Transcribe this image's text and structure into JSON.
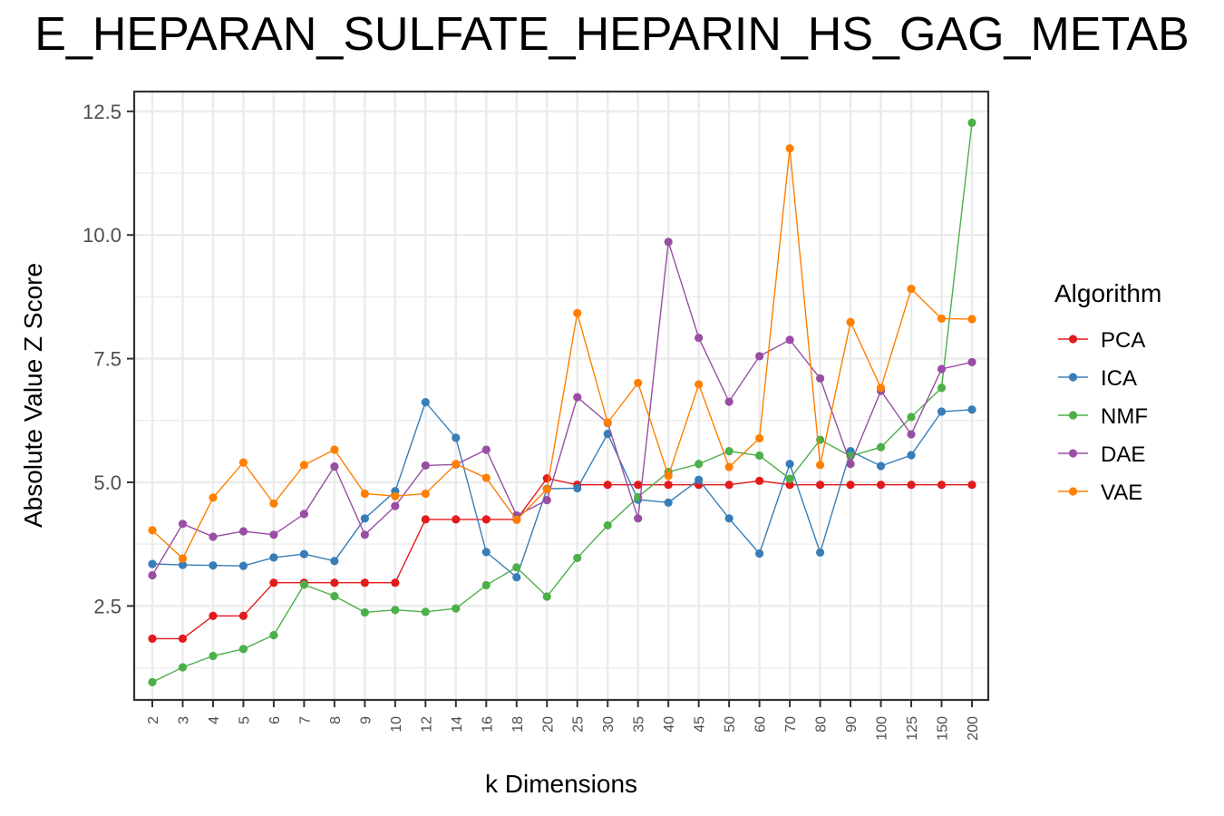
{
  "chart_data": {
    "type": "line",
    "title": "E_HEPARAN_SULFATE_HEPARIN_HS_GAG_METAB",
    "xlabel": "k Dimensions",
    "ylabel": "Absolute Value Z Score",
    "categories": [
      "2",
      "3",
      "4",
      "5",
      "6",
      "7",
      "8",
      "9",
      "10",
      "12",
      "14",
      "16",
      "18",
      "20",
      "25",
      "30",
      "35",
      "40",
      "45",
      "50",
      "60",
      "70",
      "80",
      "90",
      "100",
      "125",
      "150",
      "200"
    ],
    "y_ticks": [
      "2.5",
      "5.0",
      "7.5",
      "10.0",
      "12.5"
    ],
    "ylim": [
      0.6,
      12.9
    ],
    "grid": true,
    "legend": {
      "title": "Algorithm",
      "position": "right"
    },
    "series": [
      {
        "name": "PCA",
        "color": "#e41a1c",
        "values": [
          1.84,
          1.84,
          2.3,
          2.3,
          2.97,
          2.97,
          2.97,
          2.97,
          2.97,
          4.25,
          4.25,
          4.25,
          4.25,
          5.08,
          4.95,
          4.95,
          4.95,
          4.95,
          4.95,
          4.95,
          5.03,
          4.95,
          4.95,
          4.95,
          4.95,
          4.95,
          4.95,
          4.95
        ]
      },
      {
        "name": "ICA",
        "color": "#377eb8",
        "values": [
          3.35,
          3.33,
          3.32,
          3.31,
          3.48,
          3.55,
          3.41,
          4.27,
          4.82,
          6.62,
          5.9,
          3.59,
          3.08,
          4.87,
          4.88,
          5.98,
          4.65,
          4.59,
          5.05,
          4.27,
          3.56,
          5.37,
          3.58,
          5.63,
          5.33,
          5.55,
          6.43,
          6.47
        ]
      },
      {
        "name": "NMF",
        "color": "#4daf4a",
        "values": [
          0.96,
          1.26,
          1.49,
          1.63,
          1.91,
          2.93,
          2.7,
          2.37,
          2.42,
          2.38,
          2.45,
          2.92,
          3.28,
          2.69,
          3.47,
          4.13,
          4.7,
          5.21,
          5.37,
          5.63,
          5.54,
          5.07,
          5.86,
          5.53,
          5.71,
          6.32,
          6.91,
          12.27
        ]
      },
      {
        "name": "DAE",
        "color": "#984ea3",
        "values": [
          3.12,
          4.16,
          3.9,
          4.01,
          3.94,
          4.36,
          5.32,
          3.94,
          4.52,
          5.34,
          5.36,
          5.66,
          4.33,
          4.64,
          6.72,
          6.2,
          4.27,
          9.86,
          7.92,
          6.63,
          7.55,
          7.88,
          7.1,
          5.37,
          6.85,
          5.97,
          7.29,
          7.43
        ]
      },
      {
        "name": "VAE",
        "color": "#ff7f00",
        "values": [
          4.03,
          3.46,
          4.69,
          5.4,
          4.57,
          5.35,
          5.66,
          4.77,
          4.72,
          4.77,
          5.37,
          5.09,
          4.24,
          4.86,
          8.42,
          6.21,
          7.01,
          5.13,
          6.98,
          5.31,
          5.89,
          11.75,
          5.35,
          8.24,
          6.91,
          8.91,
          8.31,
          8.3
        ]
      }
    ]
  }
}
